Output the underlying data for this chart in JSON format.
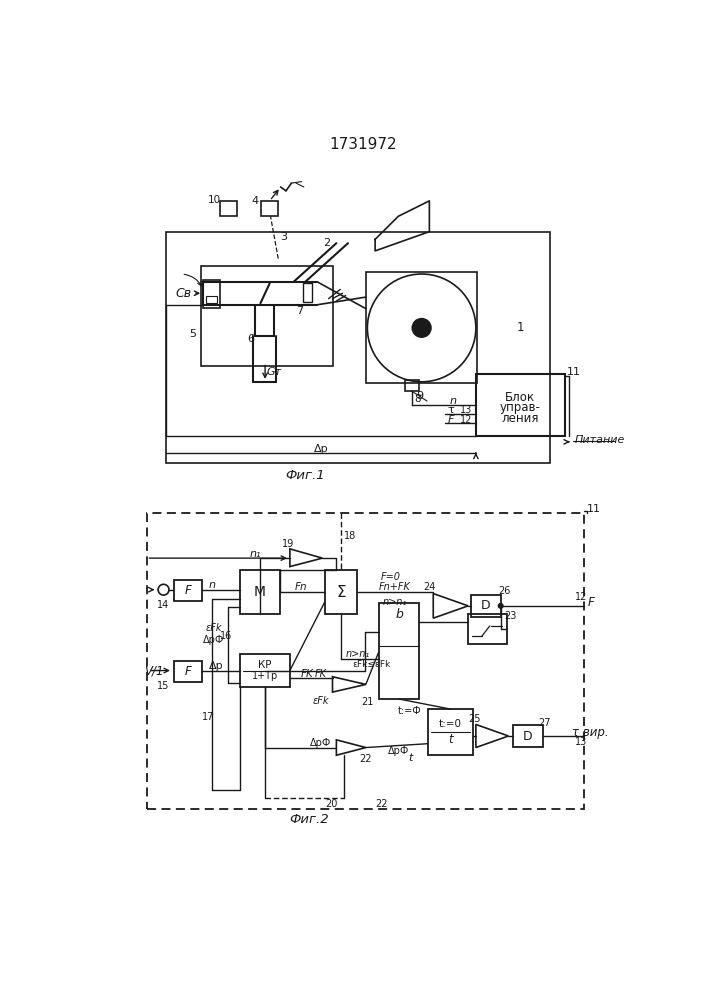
{
  "title": "1731972",
  "fig1_label": "Фиг.1",
  "fig2_label": "Фиг.2",
  "bg_color": "#ffffff",
  "line_color": "#1a1a1a",
  "text_color": "#1a1a1a"
}
